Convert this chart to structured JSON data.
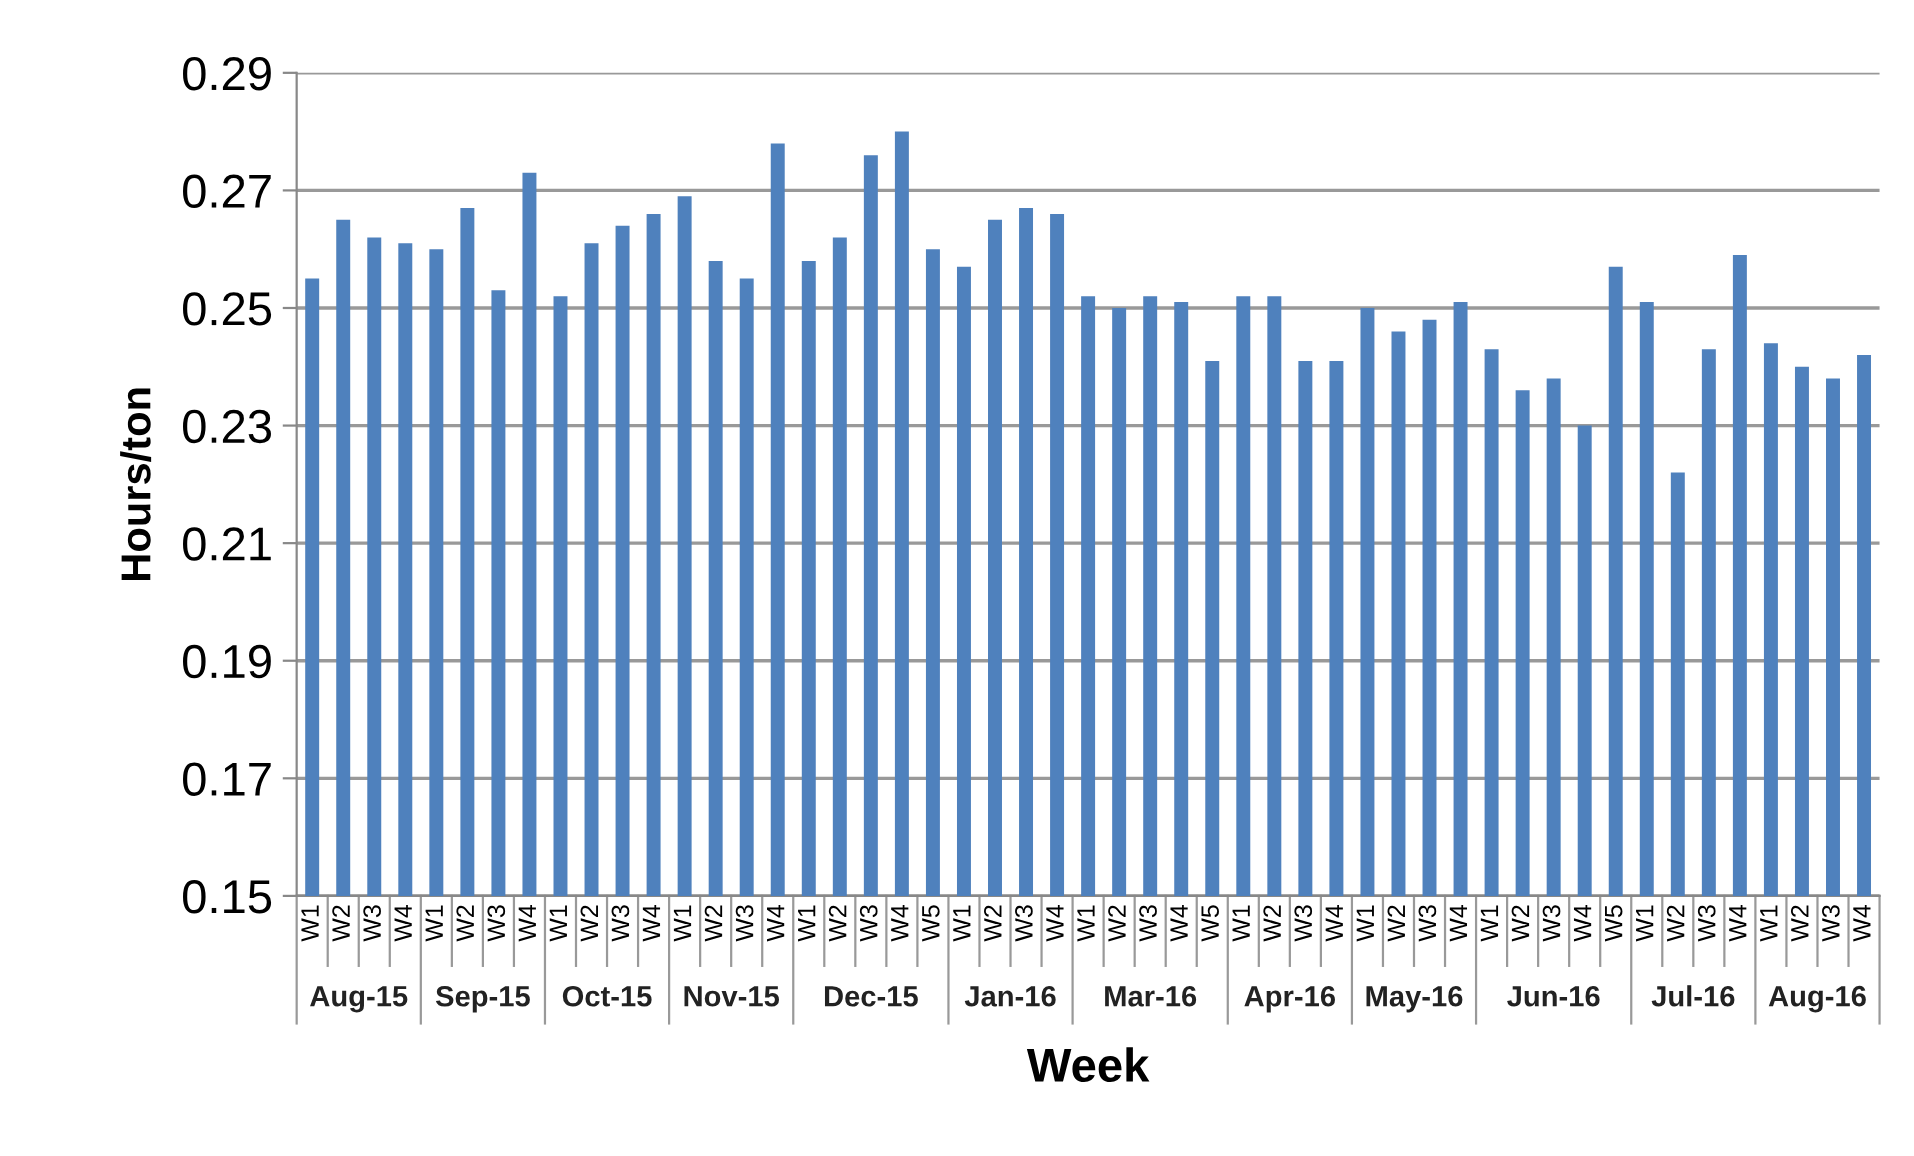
{
  "chart_data": {
    "type": "bar",
    "xlabel": "Week",
    "ylabel": "Hours/ton",
    "categories": [
      "W1",
      "W2",
      "W3",
      "W4",
      "W1",
      "W2",
      "W3",
      "W4",
      "W1",
      "W2",
      "W3",
      "W4",
      "W1",
      "W2",
      "W3",
      "W4",
      "W1",
      "W2",
      "W3",
      "W4",
      "W5",
      "W1",
      "W2",
      "W3",
      "W4",
      "W1",
      "W2",
      "W3",
      "W4",
      "W5",
      "W1",
      "W2",
      "W3",
      "W4",
      "W1",
      "W2",
      "W3",
      "W4",
      "W1",
      "W2",
      "W3",
      "W4",
      "W5",
      "W1",
      "W2",
      "W3",
      "W4",
      "W1",
      "W2",
      "W3",
      "W4"
    ],
    "annotations": [
      "Aug-15",
      "Sep-15",
      "Oct-15",
      "Nov-15",
      "Dec-15",
      "Jan-16",
      "Mar-16",
      "Apr-16",
      "May-16",
      "Jun-16",
      "Jul-16",
      "Aug-16"
    ],
    "values": [
      0.255,
      0.265,
      0.262,
      0.261,
      0.26,
      0.267,
      0.253,
      0.273,
      0.252,
      0.261,
      0.264,
      0.266,
      0.269,
      0.258,
      0.255,
      0.278,
      0.258,
      0.262,
      0.276,
      0.28,
      0.26,
      0.257,
      0.265,
      0.267,
      0.266,
      0.252,
      0.25,
      0.252,
      0.251,
      0.241,
      0.252,
      0.252,
      0.241,
      0.241,
      0.25,
      0.246,
      0.248,
      0.251,
      0.243,
      0.236,
      0.238,
      0.23,
      0.257,
      0.251,
      0.222,
      0.243,
      0.259,
      0.244,
      0.24,
      0.238,
      0.242
    ],
    "color": "#4f81bd",
    "ylim": [
      0.15,
      0.29
    ],
    "yticks": [
      0.15,
      0.17,
      0.19,
      0.21,
      0.23,
      0.25,
      0.27,
      0.29
    ],
    "grid": "y",
    "legend": false
  }
}
